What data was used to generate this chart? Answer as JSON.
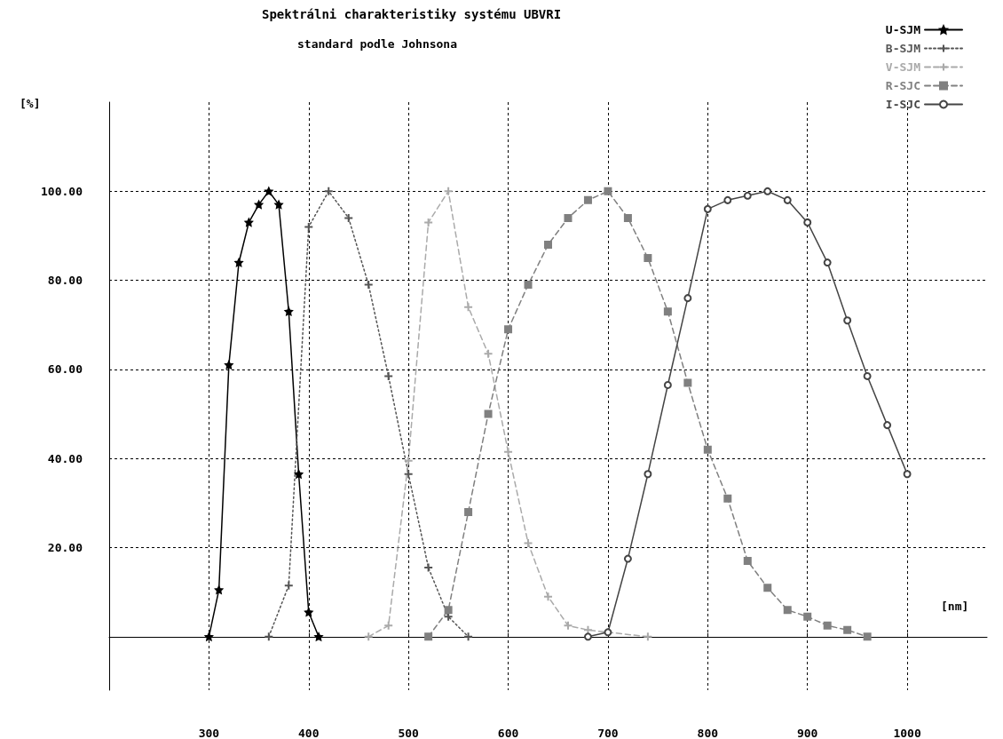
{
  "chart_data": {
    "type": "line",
    "title": "Spektrálni charakteristiky systému UBVRI",
    "subtitle": "standard podle Johnsona",
    "xlabel": "[nm]",
    "ylabel": "[%]",
    "xlim": [
      200,
      1080
    ],
    "xticks": [
      300,
      400,
      500,
      600,
      700,
      800,
      900,
      1000
    ],
    "ylim": [
      -12,
      120
    ],
    "yticks": [
      {
        "value": 20,
        "label": "20.00"
      },
      {
        "value": 40,
        "label": "40.00"
      },
      {
        "value": 60,
        "label": "60.00"
      },
      {
        "value": 80,
        "label": "80.00"
      },
      {
        "value": 100,
        "label": "100.00"
      }
    ],
    "grid": true,
    "legend": "top right",
    "series": [
      {
        "name": "U-SJM",
        "color": "#000000",
        "marker": "star",
        "line_style": "solid",
        "x": [
          300,
          310,
          320,
          330,
          340,
          350,
          360,
          370,
          380,
          390,
          400,
          410
        ],
        "values": [
          0,
          10.5,
          61,
          84,
          93,
          97,
          100,
          97,
          73,
          36.5,
          5.5,
          0
        ]
      },
      {
        "name": "B-SJM",
        "color": "#555555",
        "marker": "cross",
        "line_style": "dotted",
        "x": [
          360,
          380,
          400,
          420,
          440,
          460,
          480,
          500,
          520,
          540,
          560
        ],
        "values": [
          0,
          11.5,
          92,
          100,
          94,
          79,
          58.5,
          36.5,
          15.5,
          4.5,
          0
        ]
      },
      {
        "name": "V-SJM",
        "color": "#aaaaaa",
        "marker": "cross",
        "line_style": "dashed",
        "x": [
          460,
          480,
          500,
          520,
          540,
          560,
          580,
          600,
          620,
          640,
          660,
          680,
          740
        ],
        "values": [
          0,
          2.5,
          39.5,
          93,
          100,
          74,
          63.5,
          41.5,
          21,
          9,
          2.5,
          1.5,
          0
        ]
      },
      {
        "name": "R-SJC",
        "color": "#808080",
        "marker": "square",
        "line_style": "dashed",
        "x": [
          520,
          540,
          560,
          580,
          600,
          620,
          640,
          660,
          680,
          700,
          720,
          740,
          760,
          780,
          800,
          820,
          840,
          860,
          880,
          900,
          920,
          940,
          960
        ],
        "values": [
          0,
          6,
          28,
          50,
          69,
          79,
          88,
          94,
          98,
          100,
          94,
          85,
          73,
          57,
          42,
          31,
          17,
          11,
          6,
          4.5,
          2.5,
          1.5,
          0
        ]
      },
      {
        "name": "I-SJC",
        "color": "#444444",
        "marker": "circle",
        "line_style": "solid",
        "x": [
          680,
          700,
          720,
          740,
          760,
          780,
          800,
          820,
          840,
          860,
          880,
          900,
          920,
          940,
          960,
          980,
          1000
        ],
        "values": [
          0,
          1,
          17.5,
          36.5,
          56.5,
          76,
          96,
          98,
          99,
          100,
          98,
          93,
          84,
          71,
          58.5,
          47.5,
          36.5
        ]
      }
    ]
  }
}
